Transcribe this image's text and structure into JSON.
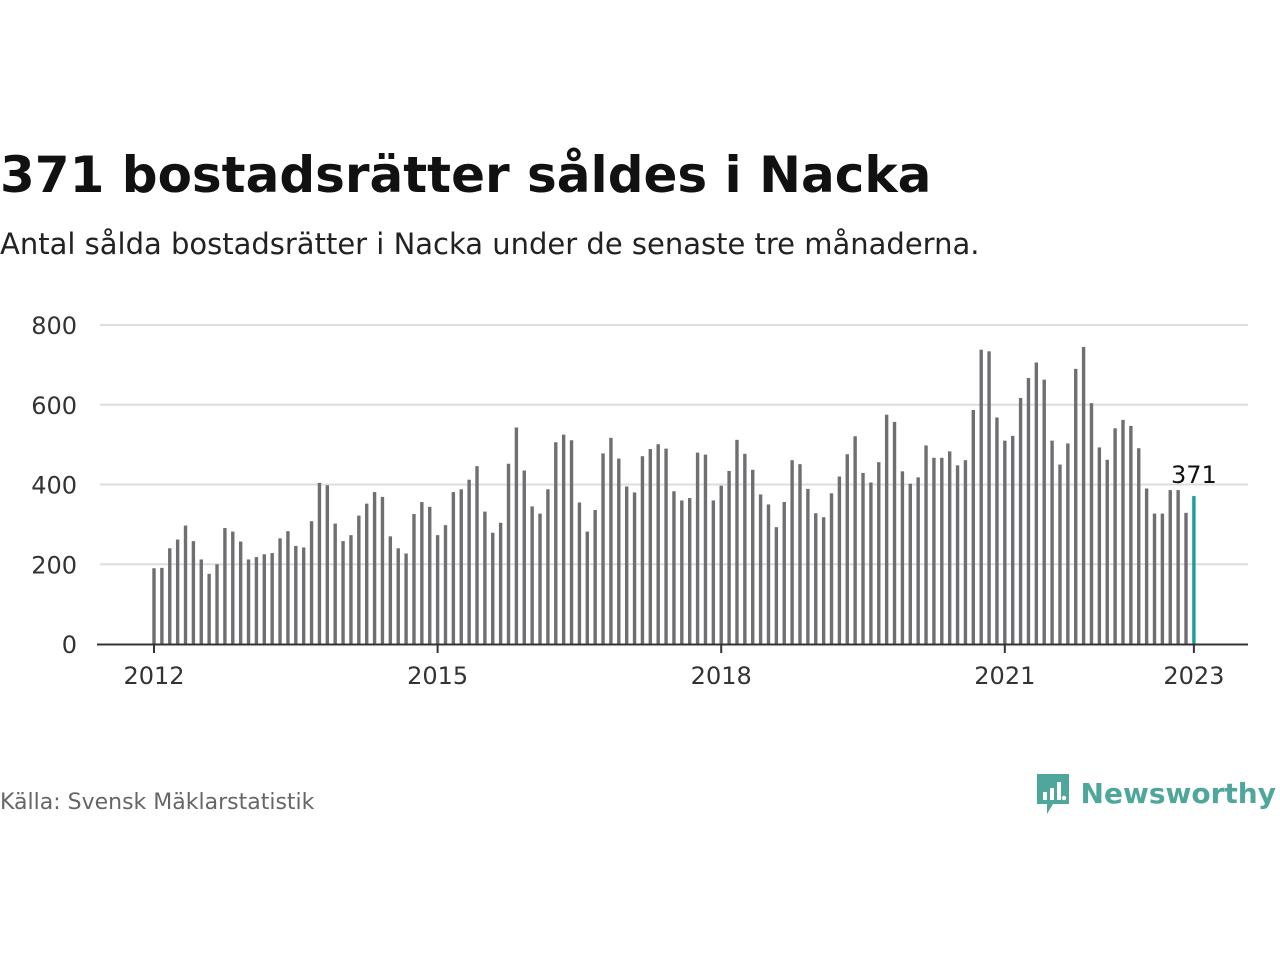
{
  "header": {
    "title": "371 bostadsrätter såldes i Nacka",
    "subtitle": "Antal sålda bostadsrätter i Nacka under de senaste tre månaderna."
  },
  "footer": {
    "source": "Källa: Svensk Mäklarstatistik",
    "logo_text": "Newsworthy",
    "logo_icon": "bar-chart-speech-bubble-icon"
  },
  "colors": {
    "bar": "#6f6f72",
    "highlight": "#1a9f97",
    "grid": "#dddddd",
    "axis": "#333333",
    "brand": "#4fa79c"
  },
  "chart_data": {
    "type": "bar",
    "title": "371 bostadsrätter såldes i Nacka",
    "subtitle": "Antal sålda bostadsrätter i Nacka under de senaste tre månaderna.",
    "xlabel": "",
    "ylabel": "",
    "ylim": [
      0,
      800
    ],
    "yticks": [
      0,
      200,
      400,
      600,
      800
    ],
    "xticks": [
      "2012",
      "2015",
      "2018",
      "2021",
      "2023"
    ],
    "grid": true,
    "x_start": "2012-01",
    "x_end": "2023-01",
    "values": [
      190,
      191,
      240,
      262,
      297,
      258,
      212,
      176,
      200,
      291,
      282,
      257,
      212,
      218,
      225,
      228,
      265,
      283,
      246,
      242,
      308,
      404,
      398,
      302,
      258,
      273,
      322,
      352,
      381,
      369,
      270,
      240,
      227,
      326,
      356,
      344,
      273,
      298,
      381,
      388,
      412,
      446,
      332,
      279,
      304,
      452,
      543,
      435,
      345,
      327,
      388,
      506,
      525,
      511,
      355,
      282,
      336,
      478,
      517,
      465,
      395,
      380,
      471,
      489,
      501,
      490,
      383,
      360,
      366,
      480,
      475,
      360,
      397,
      434,
      512,
      477,
      437,
      375,
      350,
      293,
      356,
      461,
      451,
      389,
      328,
      318,
      378,
      420,
      476,
      521,
      429,
      405,
      456,
      575,
      557,
      433,
      402,
      418,
      498,
      467,
      467,
      483,
      448,
      461,
      587,
      738,
      734,
      568,
      510,
      522,
      617,
      667,
      706,
      663,
      510,
      450,
      503,
      690,
      745,
      604,
      493,
      462,
      541,
      562,
      547,
      491,
      390,
      327,
      327,
      386,
      386,
      329,
      371
    ],
    "highlight_label": "371"
  }
}
